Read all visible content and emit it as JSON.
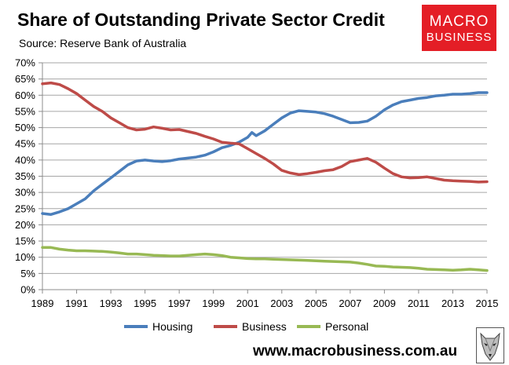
{
  "header": {
    "title": "Share of Outstanding Private Sector Credit",
    "subtitle": "Source: Reserve Bank of Australia"
  },
  "logo": {
    "line1": "MACRO",
    "line2": "BUSINESS",
    "bg_color": "#e41e26"
  },
  "footer": {
    "website": "www.macrobusiness.com.au",
    "emblem_icon": "wolf-head-icon"
  },
  "chart_data": {
    "type": "line",
    "title": "Share of Outstanding Private Sector Credit",
    "xlabel": "",
    "ylabel": "",
    "xlim": [
      1989,
      2015
    ],
    "ylim": [
      0,
      70
    ],
    "x_ticks": [
      "1989",
      "1991",
      "1993",
      "1995",
      "1997",
      "1999",
      "2001",
      "2003",
      "2005",
      "2007",
      "2009",
      "2011",
      "2013",
      "2015"
    ],
    "y_ticks": [
      "0%",
      "5%",
      "10%",
      "15%",
      "20%",
      "25%",
      "30%",
      "35%",
      "40%",
      "45%",
      "50%",
      "55%",
      "60%",
      "65%",
      "70%"
    ],
    "grid": "horizontal",
    "legend_position": "bottom",
    "series": [
      {
        "name": "Housing",
        "color": "#4a7ebb",
        "points": [
          [
            1989,
            23.5
          ],
          [
            1989.5,
            23.2
          ],
          [
            1990,
            24
          ],
          [
            1990.5,
            25
          ],
          [
            1991,
            26.5
          ],
          [
            1991.5,
            28
          ],
          [
            1992,
            30.5
          ],
          [
            1992.5,
            32.5
          ],
          [
            1993,
            34.5
          ],
          [
            1993.5,
            36.5
          ],
          [
            1994,
            38.5
          ],
          [
            1994.5,
            39.7
          ],
          [
            1995,
            40
          ],
          [
            1995.5,
            39.7
          ],
          [
            1996,
            39.5
          ],
          [
            1996.5,
            39.8
          ],
          [
            1997,
            40.3
          ],
          [
            1997.5,
            40.6
          ],
          [
            1998,
            40.9
          ],
          [
            1998.5,
            41.5
          ],
          [
            1999,
            42.5
          ],
          [
            1999.5,
            43.8
          ],
          [
            2000,
            44.5
          ],
          [
            2000.5,
            45.5
          ],
          [
            2001,
            47
          ],
          [
            2001.25,
            48.5
          ],
          [
            2001.5,
            47.5
          ],
          [
            2002,
            49
          ],
          [
            2002.5,
            51
          ],
          [
            2003,
            53
          ],
          [
            2003.5,
            54.5
          ],
          [
            2004,
            55.2
          ],
          [
            2004.5,
            55
          ],
          [
            2005,
            54.8
          ],
          [
            2005.5,
            54.3
          ],
          [
            2006,
            53.5
          ],
          [
            2006.5,
            52.5
          ],
          [
            2007,
            51.5
          ],
          [
            2007.5,
            51.6
          ],
          [
            2008,
            52
          ],
          [
            2008.5,
            53.5
          ],
          [
            2009,
            55.5
          ],
          [
            2009.5,
            57
          ],
          [
            2010,
            58
          ],
          [
            2010.5,
            58.5
          ],
          [
            2011,
            59
          ],
          [
            2011.5,
            59.3
          ],
          [
            2012,
            59.8
          ],
          [
            2012.5,
            60
          ],
          [
            2013,
            60.3
          ],
          [
            2013.5,
            60.3
          ],
          [
            2014,
            60.5
          ],
          [
            2014.5,
            60.8
          ],
          [
            2015,
            60.8
          ]
        ]
      },
      {
        "name": "Business",
        "color": "#be4b48",
        "points": [
          [
            1989,
            63.5
          ],
          [
            1989.5,
            63.8
          ],
          [
            1990,
            63.3
          ],
          [
            1990.5,
            62
          ],
          [
            1991,
            60.5
          ],
          [
            1991.5,
            58.5
          ],
          [
            1992,
            56.5
          ],
          [
            1992.5,
            55
          ],
          [
            1993,
            53
          ],
          [
            1993.5,
            51.5
          ],
          [
            1994,
            50
          ],
          [
            1994.5,
            49.3
          ],
          [
            1995,
            49.5
          ],
          [
            1995.5,
            50.2
          ],
          [
            1996,
            49.8
          ],
          [
            1996.5,
            49.3
          ],
          [
            1997,
            49.4
          ],
          [
            1997.5,
            48.8
          ],
          [
            1998,
            48.2
          ],
          [
            1998.5,
            47.3
          ],
          [
            1999,
            46.5
          ],
          [
            1999.5,
            45.5
          ],
          [
            2000,
            45.2
          ],
          [
            2000.5,
            45
          ],
          [
            2001,
            43.5
          ],
          [
            2001.5,
            42
          ],
          [
            2002,
            40.5
          ],
          [
            2002.5,
            38.8
          ],
          [
            2003,
            36.8
          ],
          [
            2003.5,
            36
          ],
          [
            2004,
            35.5
          ],
          [
            2004.5,
            35.8
          ],
          [
            2005,
            36.2
          ],
          [
            2005.5,
            36.7
          ],
          [
            2006,
            37
          ],
          [
            2006.5,
            38
          ],
          [
            2007,
            39.5
          ],
          [
            2007.5,
            40
          ],
          [
            2008,
            40.5
          ],
          [
            2008.5,
            39.3
          ],
          [
            2009,
            37.5
          ],
          [
            2009.5,
            35.8
          ],
          [
            2010,
            34.8
          ],
          [
            2010.5,
            34.5
          ],
          [
            2011,
            34.6
          ],
          [
            2011.5,
            34.8
          ],
          [
            2012,
            34.3
          ],
          [
            2012.5,
            33.8
          ],
          [
            2013,
            33.6
          ],
          [
            2013.5,
            33.5
          ],
          [
            2014,
            33.4
          ],
          [
            2014.5,
            33.2
          ],
          [
            2015,
            33.3
          ]
        ]
      },
      {
        "name": "Personal",
        "color": "#98b954",
        "points": [
          [
            1989,
            13
          ],
          [
            1989.5,
            13
          ],
          [
            1990,
            12.5
          ],
          [
            1990.5,
            12.2
          ],
          [
            1991,
            12
          ],
          [
            1991.5,
            12
          ],
          [
            1992,
            11.9
          ],
          [
            1992.5,
            11.8
          ],
          [
            1993,
            11.6
          ],
          [
            1993.5,
            11.3
          ],
          [
            1994,
            11
          ],
          [
            1994.5,
            11
          ],
          [
            1995,
            10.8
          ],
          [
            1995.5,
            10.6
          ],
          [
            1996,
            10.5
          ],
          [
            1996.5,
            10.4
          ],
          [
            1997,
            10.4
          ],
          [
            1997.5,
            10.6
          ],
          [
            1998,
            10.8
          ],
          [
            1998.5,
            11
          ],
          [
            1999,
            10.8
          ],
          [
            1999.5,
            10.5
          ],
          [
            2000,
            10
          ],
          [
            2000.5,
            9.8
          ],
          [
            2001,
            9.6
          ],
          [
            2001.5,
            9.5
          ],
          [
            2002,
            9.5
          ],
          [
            2002.5,
            9.4
          ],
          [
            2003,
            9.3
          ],
          [
            2003.5,
            9.2
          ],
          [
            2004,
            9.1
          ],
          [
            2004.5,
            9
          ],
          [
            2005,
            8.9
          ],
          [
            2005.5,
            8.8
          ],
          [
            2006,
            8.7
          ],
          [
            2006.5,
            8.6
          ],
          [
            2007,
            8.5
          ],
          [
            2007.5,
            8.2
          ],
          [
            2008,
            7.8
          ],
          [
            2008.5,
            7.3
          ],
          [
            2009,
            7.2
          ],
          [
            2009.5,
            7
          ],
          [
            2010,
            6.9
          ],
          [
            2010.5,
            6.8
          ],
          [
            2011,
            6.6
          ],
          [
            2011.5,
            6.3
          ],
          [
            2012,
            6.2
          ],
          [
            2012.5,
            6.1
          ],
          [
            2013,
            6
          ],
          [
            2013.5,
            6.1
          ],
          [
            2014,
            6.3
          ],
          [
            2014.5,
            6.1
          ],
          [
            2015,
            5.9
          ]
        ]
      }
    ]
  }
}
